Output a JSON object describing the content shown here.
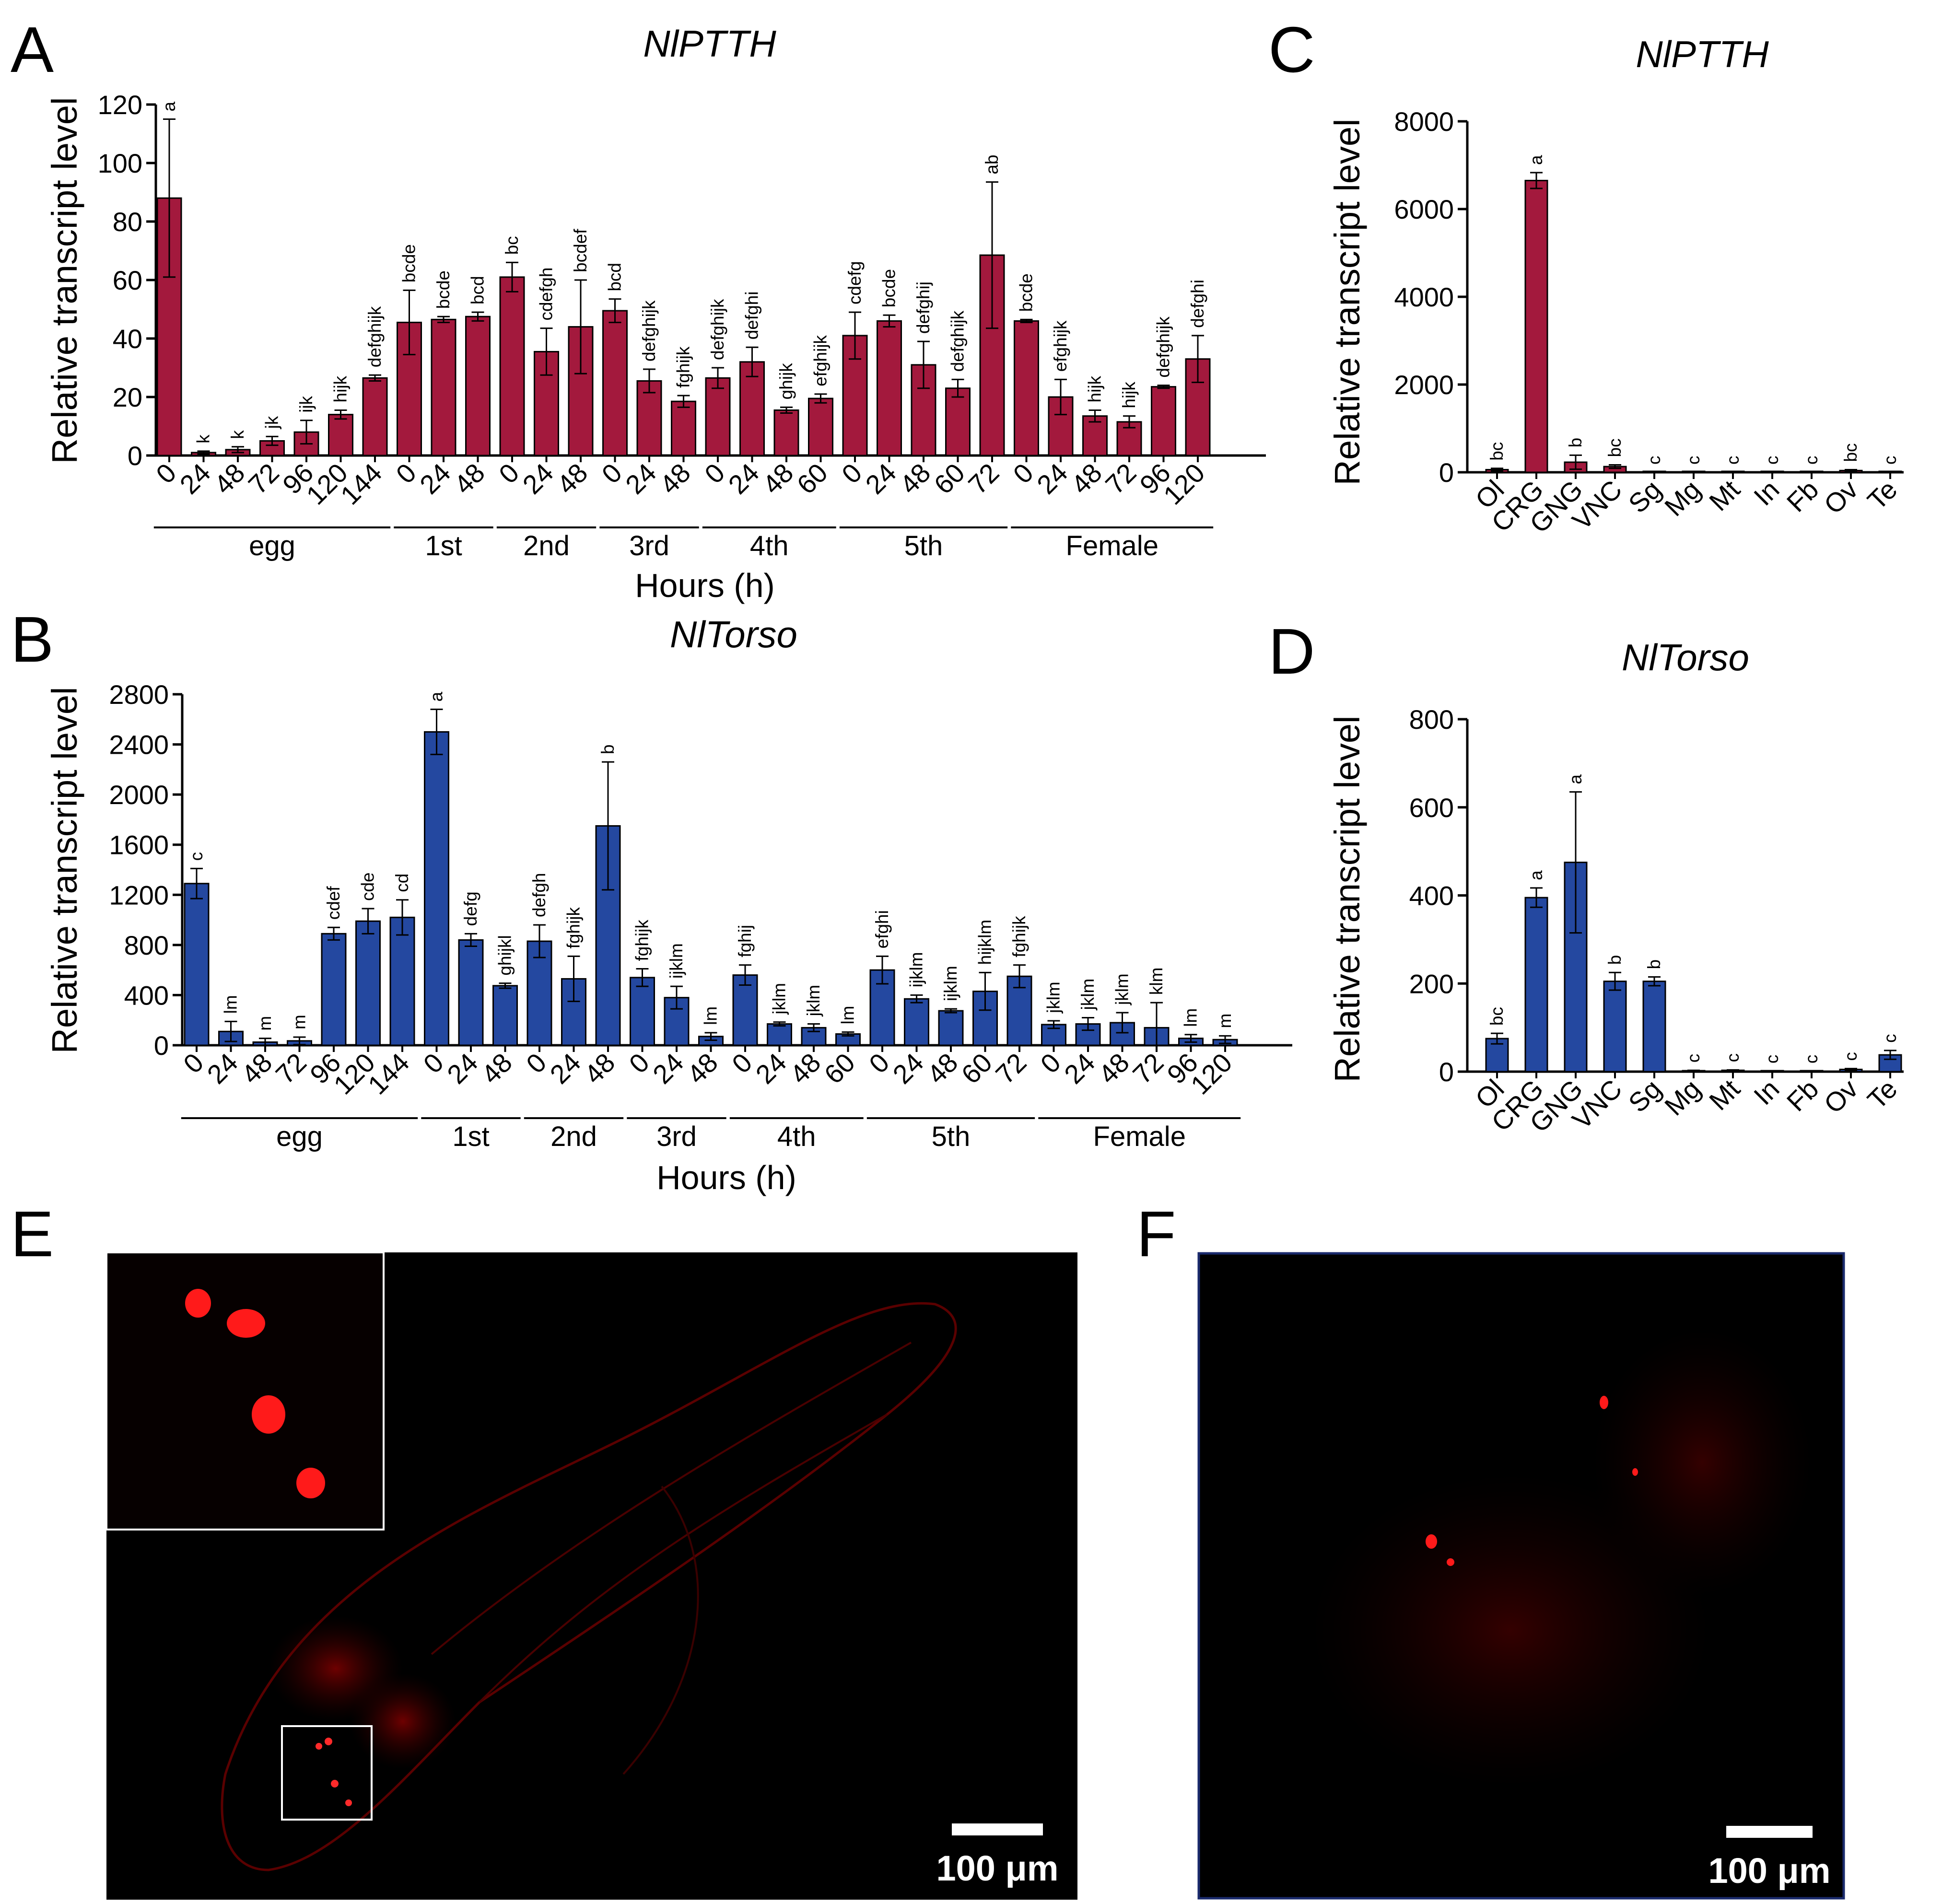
{
  "panels": {
    "a": "A",
    "b": "B",
    "c": "C",
    "d": "D",
    "e": "E",
    "f": "F"
  },
  "colors": {
    "red_bar": "#A3193D",
    "blue_bar": "#2448A0",
    "fluor": "#FF1A1A"
  },
  "chart_data": [
    {
      "id": "A",
      "type": "bar",
      "title": "NlPTTH",
      "ylabel": "Relative transcript level",
      "xlabel": "Hours (h)",
      "ylim": [
        0,
        120
      ],
      "yticks": [
        0,
        20,
        40,
        60,
        80,
        100,
        120
      ],
      "categories": [
        "0",
        "24",
        "48",
        "72",
        "96",
        "120",
        "144",
        "0",
        "24",
        "48",
        "0",
        "24",
        "48",
        "0",
        "24",
        "48",
        "0",
        "24",
        "48",
        "60",
        "0",
        "24",
        "48",
        "60",
        "72",
        "0",
        "24",
        "48",
        "72",
        "96",
        "120"
      ],
      "values": [
        88,
        1,
        2,
        5,
        8,
        14,
        26.5,
        45.5,
        46.5,
        47.5,
        61,
        35.5,
        44,
        49.5,
        25.5,
        18.5,
        26.5,
        32,
        15.5,
        19.5,
        41,
        46,
        31,
        23,
        68.5,
        46,
        20,
        13.5,
        11.5,
        23.5,
        33
      ],
      "errors": [
        27,
        0.5,
        1,
        1.5,
        4,
        1.5,
        1,
        11,
        1,
        1.5,
        5,
        8,
        16,
        4,
        4,
        2,
        3.5,
        5,
        1,
        1.5,
        8,
        2,
        8,
        3,
        25,
        0.5,
        6,
        2,
        2,
        0.5,
        8
      ],
      "letters": [
        "a",
        "k",
        "k",
        "jk",
        "ijk",
        "hijk",
        "defghijk",
        "bcde",
        "bcde",
        "bcd",
        "bc",
        "cdefgh",
        "bcdef",
        "bcd",
        "defghijk",
        "fghijk",
        "defghijk",
        "defghi",
        "ghijk",
        "efghijk",
        "cdefg",
        "bcde",
        "defghij",
        "defghijk",
        "ab",
        "bcde",
        "efghijk",
        "hijk",
        "hijk",
        "defghijk",
        "defghi"
      ],
      "groups": [
        {
          "name": "egg",
          "count": 7
        },
        {
          "name": "1st",
          "count": 3
        },
        {
          "name": "2nd",
          "count": 3
        },
        {
          "name": "3rd",
          "count": 3
        },
        {
          "name": "4th",
          "count": 4
        },
        {
          "name": "5th",
          "count": 5
        },
        {
          "name": "Female",
          "count": 6
        }
      ]
    },
    {
      "id": "B",
      "type": "bar",
      "title": "NlTorso",
      "ylabel": "Relative transcript level",
      "xlabel": "Hours (h)",
      "ylim": [
        0,
        2800
      ],
      "yticks": [
        0,
        400,
        800,
        1200,
        1600,
        2000,
        2400,
        2800
      ],
      "categories": [
        "0",
        "24",
        "48",
        "72",
        "96",
        "120",
        "144",
        "0",
        "24",
        "48",
        "0",
        "24",
        "48",
        "0",
        "24",
        "48",
        "0",
        "24",
        "48",
        "60",
        "0",
        "24",
        "48",
        "60",
        "72",
        "0",
        "24",
        "48",
        "72",
        "96",
        "120"
      ],
      "values": [
        1290,
        110,
        25,
        35,
        890,
        990,
        1020,
        2500,
        840,
        475,
        830,
        530,
        1750,
        540,
        380,
        70,
        560,
        170,
        140,
        90,
        600,
        370,
        275,
        430,
        550,
        165,
        170,
        180,
        140,
        55,
        45
      ],
      "errors": [
        120,
        80,
        30,
        30,
        50,
        100,
        140,
        180,
        50,
        20,
        130,
        180,
        510,
        70,
        90,
        30,
        80,
        15,
        30,
        15,
        110,
        30,
        15,
        150,
        90,
        30,
        50,
        80,
        200,
        30,
        30
      ],
      "letters": [
        "c",
        "lm",
        "m",
        "m",
        "cdef",
        "cde",
        "cd",
        "a",
        "defg",
        "ghijkl",
        "defgh",
        "fghijk",
        "b",
        "fghijk",
        "ijklm",
        "lm",
        "fghij",
        "jklm",
        "jklm",
        "lm",
        "efghi",
        "ijklm",
        "ijklm",
        "hijklm",
        "fghijk",
        "jklm",
        "jklm",
        "jklm",
        "klm",
        "lm",
        "m"
      ],
      "groups": [
        {
          "name": "egg",
          "count": 7
        },
        {
          "name": "1st",
          "count": 3
        },
        {
          "name": "2nd",
          "count": 3
        },
        {
          "name": "3rd",
          "count": 3
        },
        {
          "name": "4th",
          "count": 4
        },
        {
          "name": "5th",
          "count": 5
        },
        {
          "name": "Female",
          "count": 6
        }
      ]
    },
    {
      "id": "C",
      "type": "bar",
      "title": "NlPTTH",
      "ylabel": "Relative transcript level",
      "xlabel": "",
      "ylim": [
        0,
        8000
      ],
      "yticks": [
        0,
        2000,
        4000,
        6000,
        8000
      ],
      "categories": [
        "Ol",
        "CRG",
        "GNG",
        "VNC",
        "Sg",
        "Mg",
        "Mt",
        "In",
        "Fb",
        "Ov",
        "Te"
      ],
      "values": [
        60,
        6650,
        230,
        130,
        0,
        0,
        0,
        0,
        0,
        40,
        0
      ],
      "errors": [
        30,
        180,
        160,
        40,
        0,
        0,
        0,
        0,
        0,
        20,
        0
      ],
      "letters": [
        "bc",
        "a",
        "b",
        "bc",
        "c",
        "c",
        "c",
        "c",
        "c",
        "bc",
        "c"
      ]
    },
    {
      "id": "D",
      "type": "bar",
      "title": "NlTorso",
      "ylabel": "Relative transcript level",
      "xlabel": "",
      "ylim": [
        0,
        800
      ],
      "yticks": [
        0,
        200,
        400,
        600,
        800
      ],
      "categories": [
        "Ol",
        "CRG",
        "GNG",
        "VNC",
        "Sg",
        "Mg",
        "Mt",
        "In",
        "Fb",
        "Ov",
        "Te"
      ],
      "values": [
        75,
        395,
        475,
        205,
        205,
        2,
        3,
        1,
        1,
        5,
        38
      ],
      "errors": [
        12,
        22,
        160,
        20,
        10,
        1,
        1,
        0,
        0,
        2,
        10
      ],
      "letters": [
        "bc",
        "a",
        "a",
        "b",
        "b",
        "c",
        "c",
        "c",
        "c",
        "c",
        "c"
      ]
    }
  ],
  "micrographs": {
    "e": {
      "scale_bar": "100 μm"
    },
    "f": {
      "scale_bar": "100 μm"
    }
  }
}
